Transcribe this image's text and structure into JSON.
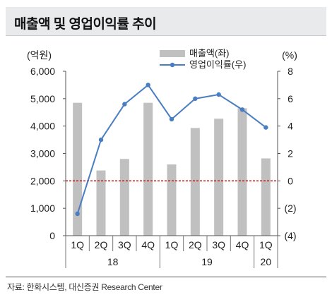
{
  "header": {
    "title": "매출액 및 영업이익률 추이"
  },
  "source": "자료: 한화시스템, 대신증권 Research Center",
  "chart_data": {
    "type": "bar+line",
    "categories": [
      "1Q",
      "2Q",
      "3Q",
      "4Q",
      "1Q",
      "2Q",
      "3Q",
      "4Q",
      "1Q"
    ],
    "year_groups": [
      {
        "label": "18",
        "count": 4
      },
      {
        "label": "19",
        "count": 4
      },
      {
        "label": "20",
        "count": 1
      }
    ],
    "series": [
      {
        "name": "매출액(좌)",
        "type": "bar",
        "axis": "left",
        "color": "#c0c0c0",
        "values": [
          4850,
          2380,
          2800,
          4850,
          2600,
          3930,
          4270,
          4650,
          2820
        ]
      },
      {
        "name": "영업이익률(우)",
        "type": "line",
        "axis": "right",
        "color": "#4a7ec2",
        "values": [
          -2.4,
          3.0,
          5.6,
          7.0,
          4.5,
          6.0,
          6.3,
          5.2,
          3.9
        ]
      }
    ],
    "left_axis": {
      "unit_label": "(억원)",
      "range": [
        0,
        6000
      ],
      "ticks": [
        "0",
        "1,000",
        "2,000",
        "3,000",
        "4,000",
        "5,000",
        "6,000"
      ]
    },
    "right_axis": {
      "unit_label": "(%)",
      "range": [
        -4,
        8
      ],
      "ticks": [
        "(4)",
        "(2)",
        "0",
        "2",
        "4",
        "6",
        "8"
      ]
    },
    "reference_line": {
      "axis": "right",
      "value": 0,
      "color": "#c00000",
      "style": "dashed"
    },
    "legend_position": "top-center",
    "grid": false
  }
}
